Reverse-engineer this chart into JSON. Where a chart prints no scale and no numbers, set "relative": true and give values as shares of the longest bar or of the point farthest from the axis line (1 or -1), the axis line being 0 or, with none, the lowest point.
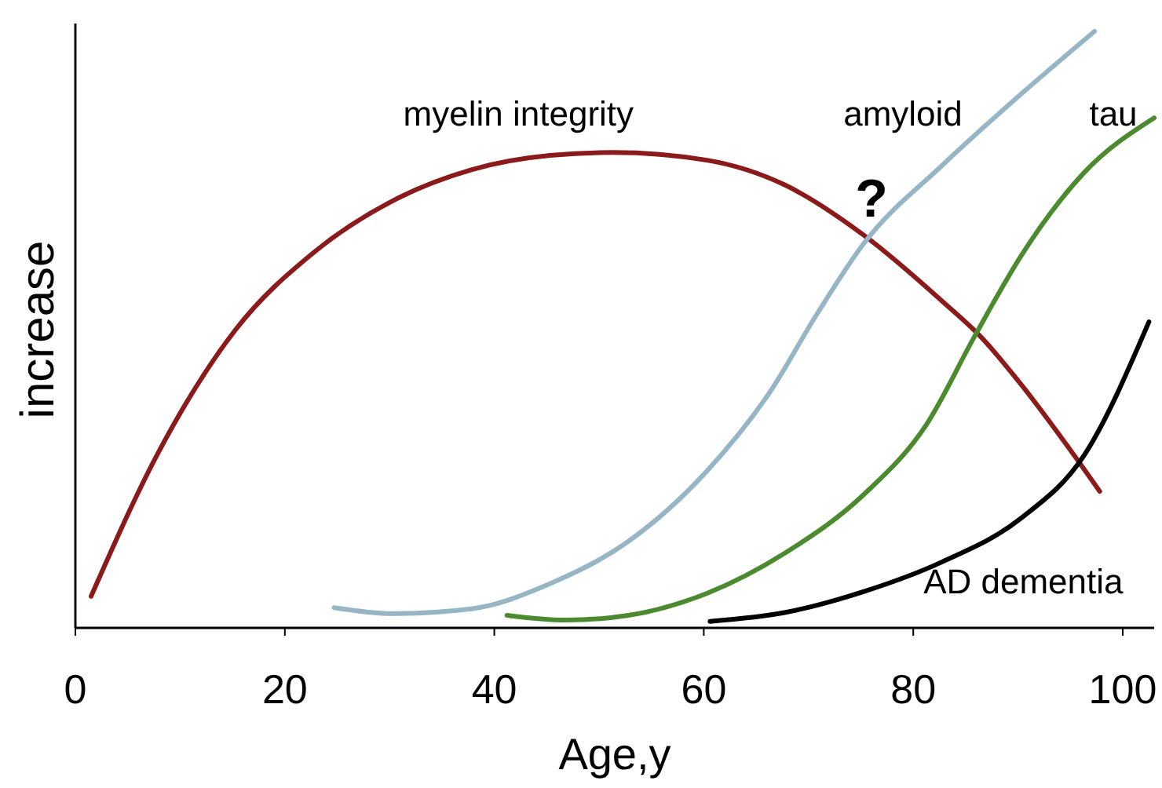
{
  "chart_data": {
    "type": "line",
    "relative": true,
    "xlabel": "Age,y",
    "ylabel": "increase",
    "xlim": [
      0,
      103
    ],
    "xticks": [
      0,
      20,
      40,
      60,
      80,
      100
    ],
    "grid": false,
    "line_style": "solid",
    "annotations": [
      "?"
    ],
    "series": [
      {
        "name": "myelin integrity",
        "color": "#8b1a1a",
        "x": [
          1.5,
          7.8,
          15.3,
          22.8,
          30.3,
          37.8,
          45.3,
          51.3,
          60.3,
          67.8,
          75.3,
          82.8,
          86.5,
          90.3,
          94.8,
          97.8
        ],
        "values": [
          0.053,
          0.29,
          0.5,
          0.63,
          0.716,
          0.768,
          0.792,
          0.797,
          0.784,
          0.742,
          0.658,
          0.547,
          0.487,
          0.408,
          0.303,
          0.229
        ]
      },
      {
        "name": "amyloid",
        "color": "#96b5c5",
        "x": [
          24.7,
          30.3,
          37.8,
          45.3,
          52.8,
          60.3,
          66.3,
          70.8,
          75.3,
          82.8,
          90.3,
          97.3
        ],
        "values": [
          0.034,
          0.024,
          0.032,
          0.074,
          0.145,
          0.263,
          0.395,
          0.526,
          0.645,
          0.776,
          0.895,
          1
        ]
      },
      {
        "name": "tau",
        "color": "#4b8a2e",
        "x": [
          41.2,
          46.8,
          52.8,
          60.3,
          67.8,
          75.3,
          81.3,
          85.8,
          90.3,
          96.3,
          103
        ],
        "values": [
          0.021,
          0.013,
          0.021,
          0.058,
          0.126,
          0.224,
          0.342,
          0.487,
          0.624,
          0.763,
          0.855
        ]
      },
      {
        "name": "AD dementia",
        "color": "#000000",
        "x": [
          60.6,
          67.8,
          75.3,
          82.8,
          90.3,
          96.3,
          102.5
        ],
        "values": [
          0.011,
          0.026,
          0.061,
          0.111,
          0.184,
          0.289,
          0.513
        ]
      }
    ]
  }
}
